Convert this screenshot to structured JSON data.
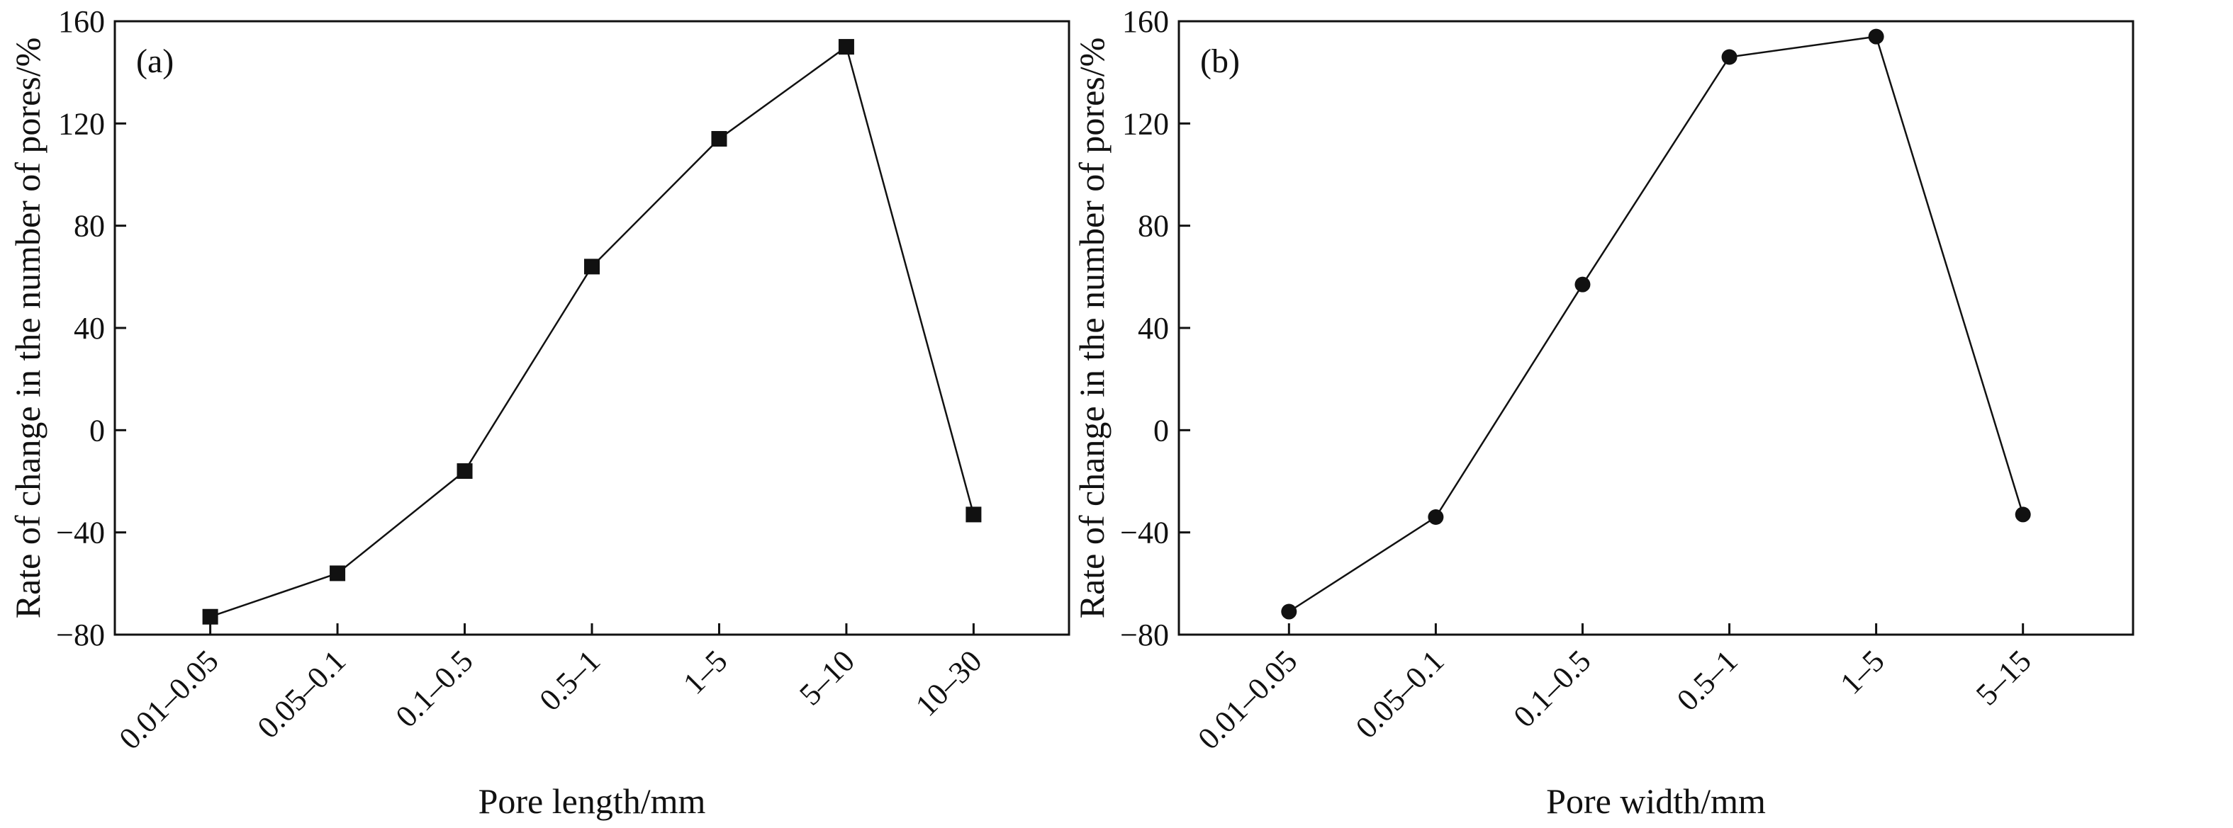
{
  "chart_data": [
    {
      "type": "line",
      "panel_label": "(a)",
      "categories": [
        "0.01–0.05",
        "0.05–0.1",
        "0.1–0.5",
        "0.5–1",
        "1–5",
        "5–10",
        "10–30"
      ],
      "series": [
        {
          "values": [
            -73,
            -56,
            -16,
            64,
            114,
            150,
            -33
          ],
          "marker": "square"
        }
      ],
      "xlabel": "Pore length/mm",
      "ylabel": "Rate of change in the number of pores/%",
      "ylim": [
        -80,
        160
      ],
      "yticks": [
        "-80",
        "-40",
        "0",
        "40",
        "80",
        "120",
        "160"
      ],
      "yticks_display": [
        "−80",
        "−40",
        "0",
        "40",
        "80",
        "120",
        "160"
      ],
      "grid": false
    },
    {
      "type": "line",
      "panel_label": "(b)",
      "categories": [
        "0.01–0.05",
        "0.05–0.1",
        "0.1–0.5",
        "0.5–1",
        "1–5",
        "5–15"
      ],
      "series": [
        {
          "values": [
            -71,
            -34,
            57,
            146,
            154,
            -33
          ],
          "marker": "circle"
        }
      ],
      "xlabel": "Pore width/mm",
      "ylabel": "Rate of change in the number of pores/%",
      "ylim": [
        -80,
        160
      ],
      "yticks": [
        "-80",
        "-40",
        "0",
        "40",
        "80",
        "120",
        "160"
      ],
      "yticks_display": [
        "−80",
        "−40",
        "0",
        "40",
        "80",
        "120",
        "160"
      ],
      "grid": false
    }
  ]
}
